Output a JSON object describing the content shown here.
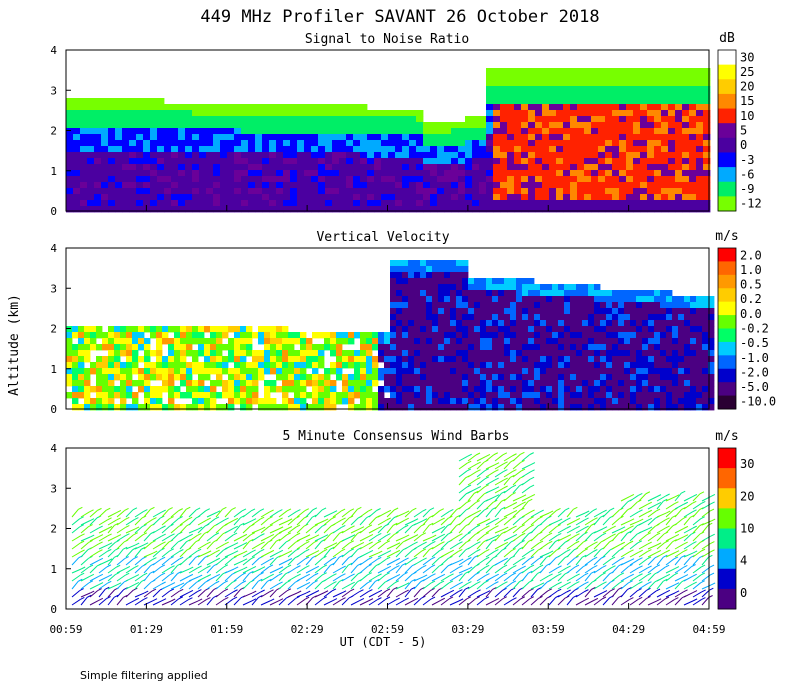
{
  "chart_data": [
    {
      "type": "heatmap",
      "title": "449 MHz Profiler SAVANT 26 October 2018",
      "subtitle": "Signal to Noise Ratio",
      "ylabel": "Altitude (km)",
      "ylim": [
        0,
        4
      ],
      "yticks": [
        "0",
        "1",
        "2",
        "3",
        "4"
      ],
      "colorbar_unit": "dB",
      "colorbar_labels": [
        "30",
        "25",
        "20",
        "15",
        "10",
        "5",
        "0",
        "-3",
        "-6",
        "-9",
        "-12"
      ],
      "colors": [
        "#ffffff",
        "#ffff00",
        "#ffcc00",
        "#ff8800",
        "#ff2200",
        "#6a0099",
        "#4b00a0",
        "#0000ff",
        "#00aaff",
        "#00ee66",
        "#77ff00"
      ],
      "grid": false
    },
    {
      "type": "heatmap",
      "subtitle": "Vertical Velocity",
      "ylim": [
        0,
        4
      ],
      "yticks": [
        "0",
        "1",
        "2",
        "3",
        "4"
      ],
      "colorbar_unit": "m/s",
      "colorbar_labels": [
        "2.0",
        "1.0",
        "0.5",
        "0.2",
        "0.0",
        "-0.2",
        "-0.5",
        "-1.0",
        "-2.0",
        "-5.0",
        "-10.0"
      ],
      "colors": [
        "#ff0000",
        "#ff6600",
        "#ff9900",
        "#ffcc00",
        "#ffff00",
        "#66ff00",
        "#00ff66",
        "#00ccff",
        "#0066ff",
        "#0000cc",
        "#4b0082",
        "#2a0033"
      ],
      "grid": false
    },
    {
      "type": "scatter",
      "subtitle": "5 Minute Consensus Wind Barbs",
      "ylim": [
        0,
        4
      ],
      "yticks": [
        "0",
        "1",
        "2",
        "3",
        "4"
      ],
      "colorbar_unit": "m/s",
      "colorbar_labels": [
        "30",
        "20",
        "10",
        "4",
        "0"
      ],
      "colors": [
        "#ff0000",
        "#ff6600",
        "#ffcc00",
        "#66ff00",
        "#00ee88",
        "#00aaff",
        "#0000cc",
        "#4b0082"
      ],
      "xtick_labels": [
        "00:59",
        "01:29",
        "01:59",
        "02:29",
        "02:59",
        "03:29",
        "03:59",
        "04:29",
        "04:59"
      ],
      "xlabel": "UT  (CDT - 5)"
    }
  ],
  "footer_note": "Simple filtering applied"
}
